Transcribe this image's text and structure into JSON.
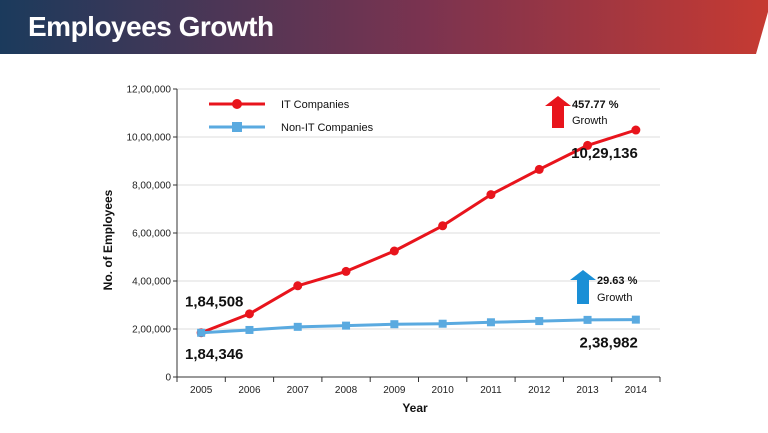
{
  "header": {
    "title": "Employees Growth",
    "gradient_start": "#1b3a5c",
    "gradient_mid": "#7a3350",
    "gradient_end": "#c63a32"
  },
  "chart_data": {
    "type": "line",
    "xlabel": "Year",
    "ylabel": "No. of Employees",
    "ylim": [
      0,
      1200000
    ],
    "yticks": [
      0,
      200000,
      400000,
      600000,
      800000,
      1000000,
      1200000
    ],
    "ytick_labels": [
      "0",
      "2,00,000",
      "4,00,000",
      "6,00,000",
      "8,00,000",
      "10,00,000",
      "12,00,000"
    ],
    "x": [
      "2005",
      "2006",
      "2007",
      "2008",
      "2009",
      "2010",
      "2011",
      "2012",
      "2013",
      "2014"
    ],
    "grid": "horizontal",
    "legend": "top-left",
    "series": [
      {
        "name": "IT Companies",
        "color": "#e8141c",
        "marker": "circle",
        "values": [
          184508,
          263000,
          380000,
          440000,
          525000,
          630000,
          760000,
          865000,
          965000,
          1029136
        ]
      },
      {
        "name": "Non-IT Companies",
        "color": "#5aaae0",
        "marker": "square",
        "values": [
          184346,
          196000,
          209000,
          214000,
          220000,
          222000,
          228000,
          233000,
          238000,
          238982
        ]
      }
    ],
    "annotations": {
      "it_start": "1,84,508",
      "it_end": "10,29,136",
      "nonit_start": "1,84,346",
      "nonit_end": "2,38,982",
      "it_growth_pct": "457.77 %",
      "it_growth_word": "Growth",
      "it_arrow_color": "#e8141c",
      "nonit_growth_pct": "29.63 %",
      "nonit_growth_word": "Growth",
      "nonit_arrow_color": "#1a8fd6"
    }
  }
}
